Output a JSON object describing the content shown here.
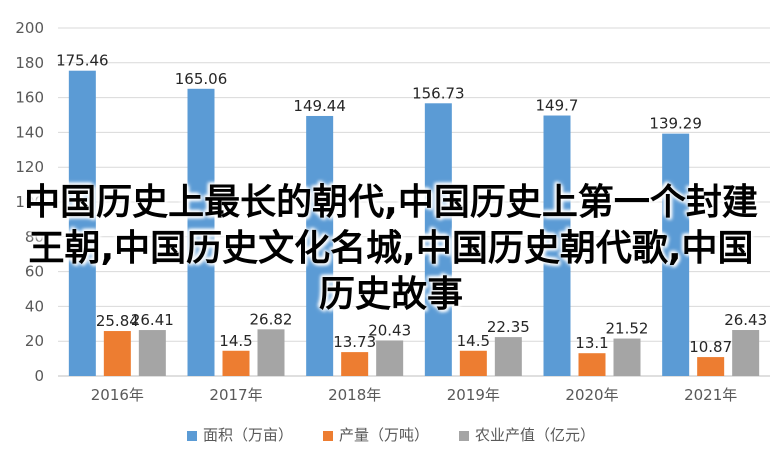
{
  "chart_data": {
    "type": "bar",
    "categories": [
      "2016年",
      "2017年",
      "2018年",
      "2019年",
      "2020年",
      "2021年"
    ],
    "series": [
      {
        "name": "面积（万亩）",
        "values": [
          175.46,
          165.06,
          149.44,
          156.73,
          149.7,
          139.29
        ],
        "color": "#5b9bd5"
      },
      {
        "name": "产量（万吨）",
        "values": [
          25.84,
          14.5,
          13.73,
          14.5,
          13.1,
          10.87
        ],
        "color": "#ed7d31"
      },
      {
        "name": "农业产值（亿元）",
        "values": [
          26.41,
          26.82,
          20.43,
          22.35,
          21.52,
          26.43
        ],
        "color": "#a5a5a5"
      }
    ],
    "ylim": [
      0,
      200
    ],
    "yticks": [
      "0",
      "20",
      "40",
      "60",
      "80",
      "100",
      "120",
      "140",
      "160",
      "180",
      "200"
    ],
    "grid": true,
    "legend_position": "bottom"
  },
  "overlay_text": "中国历史上最长的朝代,中国历史上第一个封建王朝,中国历史文化名城,中国历史朝代歌,中国历史故事"
}
